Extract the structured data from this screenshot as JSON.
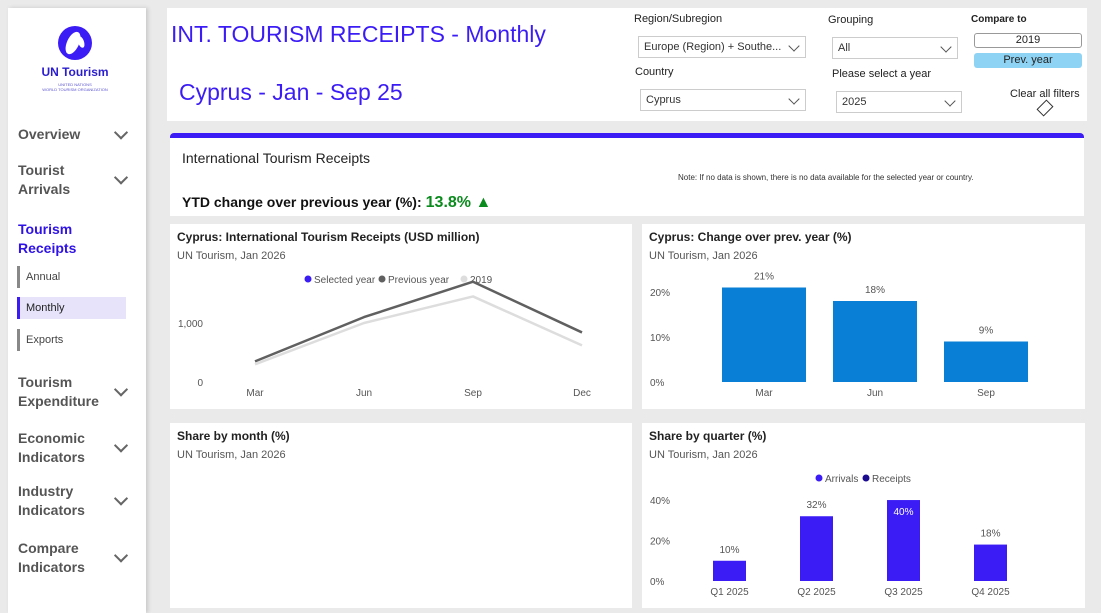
{
  "sidebar": {
    "logo": {
      "name": "UN Tourism",
      "sub1": "UNITED NATIONS",
      "sub2": "WORLD TOURISM ORGANIZATION"
    },
    "items": [
      {
        "line1": "Overview",
        "line2": ""
      },
      {
        "line1": "Tourist",
        "line2": "Arrivals"
      },
      {
        "line1": "Tourism",
        "line2": "Receipts"
      },
      {
        "line1": "Tourism",
        "line2": "Expenditure"
      },
      {
        "line1": "Economic",
        "line2": "Indicators"
      },
      {
        "line1": "Industry",
        "line2": "Indicators"
      },
      {
        "line1": "Compare",
        "line2": "Indicators"
      }
    ],
    "subitems": [
      "Annual",
      "Monthly",
      "Exports"
    ]
  },
  "header": {
    "title": "INT. TOURISM RECEIPTS - Monthly",
    "subtitle": "Cyprus - Jan - Sep 25",
    "region_label": "Region/Subregion",
    "region_value": "Europe (Region) + Southe...",
    "country_label": "Country",
    "country_value": "Cyprus",
    "grouping_label": "Grouping",
    "grouping_value": "All",
    "year_label": "Please select a year",
    "year_value": "2025",
    "compare_label": "Compare to",
    "compare_value": "2019",
    "compare_button": "Prev. year",
    "clear_filters": "Clear all filters"
  },
  "summary": {
    "title": "International Tourism Receipts",
    "note": "Note: If no data is shown, there is no data available for the selected year or country.",
    "ytd_label": "YTD change over previous year (%):",
    "ytd_value": "13.8% ▲"
  },
  "cards": {
    "line": {
      "title": "Cyprus: International Tourism Receipts (USD million)",
      "subtitle": "UN Tourism, Jan 2026"
    },
    "change": {
      "title": "Cyprus: Change over prev. year (%)",
      "subtitle": "UN Tourism, Jan 2026"
    },
    "month": {
      "title": "Share by month (%)",
      "subtitle": "UN Tourism, Jan 2026"
    },
    "quarter": {
      "title": "Share by quarter (%)",
      "subtitle": "UN Tourism, Jan 2026"
    }
  },
  "colors": {
    "accent": "#3b1cf5",
    "blue_bar": "#0a7fd6",
    "ytd_green": "#0b8a1d",
    "prev_line": "#606060",
    "line_2019": "#dddddd"
  },
  "chart_data": [
    {
      "type": "line",
      "x": [
        "Mar",
        "Jun",
        "Sep",
        "Dec"
      ],
      "yticks": [
        "0",
        "1,000"
      ],
      "ylim": [
        0,
        2000
      ],
      "legend": [
        "Selected year",
        "Previous year",
        "2019"
      ],
      "legend_position": "top-center",
      "series": [
        {
          "name": "Previous year",
          "values": [
            350,
            1100,
            1700,
            840
          ]
        },
        {
          "name": "2019",
          "values": [
            300,
            1000,
            1450,
            620
          ]
        }
      ]
    },
    {
      "type": "bar",
      "categories": [
        "Mar",
        "Jun",
        "Sep"
      ],
      "values": [
        21,
        18,
        9
      ],
      "labels": [
        "21%",
        "18%",
        "9%"
      ],
      "yticks": [
        "0%",
        "10%",
        "20%"
      ],
      "ylim": [
        0,
        24
      ]
    },
    {
      "type": "bar",
      "categories": [
        "Q1 2025",
        "Q2 2025",
        "Q3 2025",
        "Q4 2025"
      ],
      "legend": [
        "Arrivals",
        "Receipts"
      ],
      "legend_position": "top-center",
      "series": [
        {
          "name": "Arrivals",
          "values": [
            10,
            32,
            40,
            18
          ]
        }
      ],
      "labels": [
        "10%",
        "32%",
        "40%",
        "18%"
      ],
      "yticks": [
        "0%",
        "20%",
        "40%"
      ],
      "ylim": [
        0,
        42
      ]
    }
  ]
}
